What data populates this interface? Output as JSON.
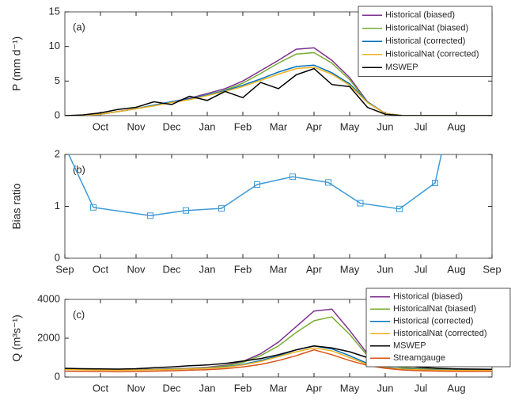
{
  "chart_data": [
    {
      "type": "line",
      "panel_label": "(a)",
      "ylabel": "P (mm d⁻¹)",
      "legend": "upper right",
      "grid": false,
      "xlim": [
        0,
        12
      ],
      "ylim": [
        0,
        15
      ],
      "xticks": [
        {
          "value": 1,
          "label": "Oct"
        },
        {
          "value": 2,
          "label": "Nov"
        },
        {
          "value": 3,
          "label": "Dec"
        },
        {
          "value": 4,
          "label": "Jan"
        },
        {
          "value": 5,
          "label": "Feb"
        },
        {
          "value": 6,
          "label": "Mar"
        },
        {
          "value": 7,
          "label": "Apr"
        },
        {
          "value": 8,
          "label": "May"
        },
        {
          "value": 9,
          "label": "Jun"
        },
        {
          "value": 10,
          "label": "Jul"
        },
        {
          "value": 11,
          "label": "Aug"
        }
      ],
      "yticks": [
        0,
        5,
        10,
        15
      ],
      "x": [
        0,
        0.5,
        1,
        1.5,
        2,
        2.5,
        3,
        3.5,
        4,
        4.5,
        5,
        5.5,
        6,
        6.5,
        7,
        7.5,
        8,
        8.5,
        9,
        9.5,
        10,
        10.5,
        11,
        11.5,
        12
      ],
      "series": [
        {
          "name": "Historical (biased)",
          "color": "#7e2f8e",
          "values": [
            0,
            0.05,
            0.2,
            0.6,
            1.0,
            1.5,
            2.0,
            2.5,
            3.2,
            3.9,
            5.0,
            6.5,
            8.0,
            9.6,
            9.8,
            8.0,
            5.5,
            2.0,
            0.3,
            0,
            0,
            0,
            0,
            0,
            0
          ]
        },
        {
          "name": "HistoricalNat (biased)",
          "color": "#77ac30",
          "values": [
            0,
            0.05,
            0.2,
            0.6,
            1.0,
            1.5,
            1.9,
            2.4,
            3.0,
            3.7,
            4.7,
            6.1,
            7.6,
            8.9,
            9.1,
            7.6,
            5.2,
            1.9,
            0.3,
            0,
            0,
            0,
            0,
            0,
            0
          ]
        },
        {
          "name": "Historical (corrected)",
          "color": "#0072bd",
          "values": [
            0,
            0.05,
            0.2,
            0.6,
            1.0,
            1.5,
            2.0,
            2.4,
            3.0,
            3.6,
            4.4,
            5.3,
            6.3,
            7.1,
            7.3,
            6.2,
            4.6,
            2.0,
            0.3,
            0,
            0,
            0,
            0,
            0,
            0
          ]
        },
        {
          "name": "HistoricalNat (corrected)",
          "color": "#edb120",
          "values": [
            0,
            0.05,
            0.2,
            0.6,
            1.0,
            1.4,
            1.9,
            2.3,
            2.9,
            3.5,
            4.2,
            5.1,
            6.0,
            6.8,
            7.0,
            6.0,
            4.4,
            1.9,
            0.3,
            0,
            0,
            0,
            0,
            0,
            0
          ]
        },
        {
          "name": "MSWEP",
          "color": "#000000",
          "values": [
            0,
            0.1,
            0.4,
            0.9,
            1.2,
            2.0,
            1.6,
            2.8,
            2.2,
            3.5,
            2.6,
            4.8,
            3.9,
            5.9,
            6.8,
            4.5,
            4.2,
            1.2,
            0.2,
            0,
            0,
            0,
            0,
            0,
            0
          ]
        }
      ]
    },
    {
      "type": "line",
      "panel_label": "(b)",
      "ylabel": "Bias ratio",
      "legend": "none",
      "grid": false,
      "marker": "square",
      "xlim": [
        0,
        12
      ],
      "ylim": [
        0,
        2
      ],
      "xticks": [
        {
          "value": 0,
          "label": "Sep"
        },
        {
          "value": 1,
          "label": "Oct"
        },
        {
          "value": 2,
          "label": "Nov"
        },
        {
          "value": 3,
          "label": "Dec"
        },
        {
          "value": 4,
          "label": "Jan"
        },
        {
          "value": 5,
          "label": "Feb"
        },
        {
          "value": 6,
          "label": "Mar"
        },
        {
          "value": 7,
          "label": "Apr"
        },
        {
          "value": 8,
          "label": "May"
        },
        {
          "value": 9,
          "label": "Jun"
        },
        {
          "value": 10,
          "label": "Jul"
        },
        {
          "value": 11,
          "label": "Aug"
        },
        {
          "value": 12,
          "label": "Sep"
        }
      ],
      "yticks": [
        0,
        1,
        2
      ],
      "x": [
        -0.3,
        0.8,
        2.4,
        3.4,
        4.4,
        5.4,
        6.4,
        7.4,
        8.3,
        9.4,
        10.4,
        10.9
      ],
      "series": [
        {
          "color": "#3d9ad6",
          "values": [
            2.6,
            0.98,
            0.82,
            0.92,
            0.96,
            1.42,
            1.57,
            1.46,
            1.06,
            0.95,
            1.45,
            3.0
          ]
        }
      ]
    },
    {
      "type": "line",
      "panel_label": "(c)",
      "ylabel": "Q (m³s⁻¹)",
      "legend": "upper right outside",
      "grid": false,
      "xlim": [
        0,
        12
      ],
      "ylim": [
        0,
        4000
      ],
      "xticks": [
        {
          "value": 1,
          "label": "Oct"
        },
        {
          "value": 2,
          "label": "Nov"
        },
        {
          "value": 3,
          "label": "Dec"
        },
        {
          "value": 4,
          "label": "Jan"
        },
        {
          "value": 5,
          "label": "Feb"
        },
        {
          "value": 6,
          "label": "Mar"
        },
        {
          "value": 7,
          "label": "Apr"
        },
        {
          "value": 8,
          "label": "May"
        },
        {
          "value": 9,
          "label": "Jun"
        },
        {
          "value": 10,
          "label": "Jul"
        },
        {
          "value": 11,
          "label": "Aug"
        }
      ],
      "yticks": [
        0,
        2000,
        4000
      ],
      "x": [
        0,
        0.5,
        1,
        1.5,
        2,
        2.5,
        3,
        3.5,
        4,
        4.5,
        5,
        5.5,
        6,
        6.5,
        7,
        7.5,
        8,
        8.5,
        9,
        9.5,
        10,
        10.5,
        11,
        11.5,
        12
      ],
      "series": [
        {
          "name": "Historical (biased)",
          "color": "#7e2f8e",
          "values": [
            420,
            400,
            390,
            380,
            390,
            400,
            420,
            450,
            500,
            600,
            800,
            1200,
            1800,
            2600,
            3400,
            3500,
            2400,
            1200,
            700,
            500,
            430,
            400,
            380,
            380,
            380
          ]
        },
        {
          "name": "HistoricalNat (biased)",
          "color": "#77ac30",
          "values": [
            410,
            390,
            380,
            370,
            380,
            390,
            410,
            440,
            480,
            570,
            750,
            1100,
            1600,
            2300,
            2900,
            3100,
            2200,
            1100,
            650,
            480,
            420,
            390,
            370,
            370,
            370
          ]
        },
        {
          "name": "Historical (corrected)",
          "color": "#0072bd",
          "values": [
            400,
            380,
            370,
            360,
            370,
            380,
            400,
            430,
            460,
            520,
            650,
            850,
            1100,
            1400,
            1600,
            1450,
            1100,
            700,
            500,
            420,
            390,
            370,
            360,
            360,
            360
          ]
        },
        {
          "name": "HistoricalNat (corrected)",
          "color": "#edb120",
          "values": [
            390,
            370,
            360,
            350,
            360,
            370,
            390,
            420,
            450,
            500,
            620,
            800,
            1050,
            1300,
            1500,
            1350,
            1000,
            650,
            480,
            400,
            370,
            350,
            340,
            340,
            340
          ]
        },
        {
          "name": "MSWEP",
          "color": "#000000",
          "values": [
            450,
            430,
            420,
            410,
            430,
            480,
            520,
            580,
            620,
            700,
            820,
            950,
            1150,
            1400,
            1600,
            1500,
            1300,
            1000,
            750,
            600,
            500,
            450,
            420,
            410,
            400
          ]
        },
        {
          "name": "Streamgauge",
          "color": "#d95319",
          "values": [
            300,
            290,
            280,
            270,
            280,
            300,
            320,
            350,
            380,
            430,
            520,
            650,
            850,
            1100,
            1400,
            1150,
            850,
            600,
            450,
            360,
            320,
            300,
            290,
            290,
            290
          ]
        }
      ]
    }
  ]
}
